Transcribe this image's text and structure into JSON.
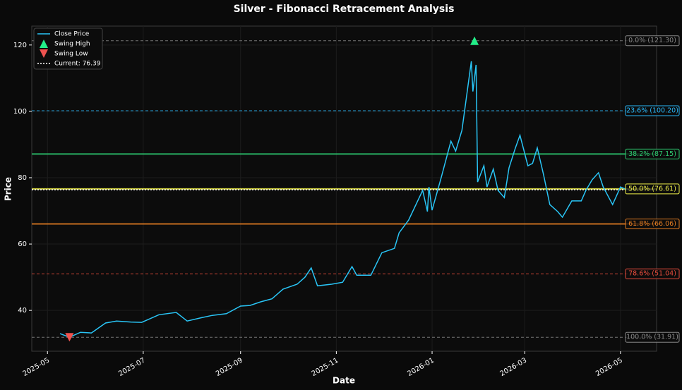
{
  "chart_data": {
    "type": "line",
    "title": "Silver - Fibonacci Retracement Analysis",
    "x_label": "Date",
    "y_label": "Price",
    "xlim": [
      "2025-04-21",
      "2026-05-24"
    ],
    "ylim": [
      27.7,
      125.7
    ],
    "yticks": [
      40,
      60,
      80,
      100,
      120
    ],
    "xticks": [
      {
        "value": "2025-05-01",
        "label": "2025-05"
      },
      {
        "value": "2025-07-01",
        "label": "2025-07"
      },
      {
        "value": "2025-09-01",
        "label": "2025-09"
      },
      {
        "value": "2025-11-01",
        "label": "2025-11"
      },
      {
        "value": "2026-01-01",
        "label": "2026-01"
      },
      {
        "value": "2026-03-01",
        "label": "2026-03"
      },
      {
        "value": "2026-05-01",
        "label": "2026-05"
      }
    ],
    "grid": true,
    "legend": "upper left",
    "series": [
      {
        "name": "Close Price",
        "color": "#29c5f6",
        "x": [
          "2025-05-09",
          "2025-05-15",
          "2025-05-22",
          "2025-05-29",
          "2025-06-07",
          "2025-06-14",
          "2025-06-23",
          "2025-06-30",
          "2025-07-11",
          "2025-07-22",
          "2025-07-29",
          "2025-08-07",
          "2025-08-14",
          "2025-08-23",
          "2025-09-01",
          "2025-09-07",
          "2025-09-14",
          "2025-09-21",
          "2025-09-28",
          "2025-10-07",
          "2025-10-12",
          "2025-10-16",
          "2025-10-20",
          "2025-10-29",
          "2025-11-05",
          "2025-11-11",
          "2025-11-14",
          "2025-11-23",
          "2025-11-30",
          "2025-12-08",
          "2025-12-11",
          "2025-12-17",
          "2025-12-26",
          "2025-12-29",
          "2025-12-30",
          "2026-01-01",
          "2026-01-07",
          "2026-01-13",
          "2026-01-16",
          "2026-01-20",
          "2026-01-26",
          "2026-01-27",
          "2026-01-29",
          "2026-01-30",
          "2026-02-03",
          "2026-02-05",
          "2026-02-09",
          "2026-02-12",
          "2026-02-16",
          "2026-02-19",
          "2026-02-23",
          "2026-02-26",
          "2026-03-03",
          "2026-03-06",
          "2026-03-09",
          "2026-03-13",
          "2026-03-17",
          "2026-03-22",
          "2026-03-25",
          "2026-03-31",
          "2026-04-06",
          "2026-04-09",
          "2026-04-13",
          "2026-04-17",
          "2026-04-20",
          "2026-04-26",
          "2026-05-01",
          "2026-05-05"
        ],
        "values": [
          33.0,
          31.9,
          33.4,
          33.2,
          36.2,
          36.8,
          36.5,
          36.4,
          38.7,
          39.4,
          36.8,
          37.8,
          38.5,
          39.0,
          41.3,
          41.5,
          42.6,
          43.5,
          46.4,
          47.9,
          50.0,
          52.8,
          47.4,
          47.9,
          48.5,
          53.2,
          50.6,
          50.6,
          57.4,
          58.7,
          63.4,
          67.2,
          76.2,
          69.8,
          77.2,
          70.2,
          80.4,
          91.0,
          88.0,
          94.3,
          115.1,
          106.0,
          114.0,
          78.7,
          83.6,
          77.2,
          82.6,
          76.2,
          74.0,
          83.0,
          88.9,
          92.8,
          83.6,
          84.3,
          89.0,
          80.9,
          71.9,
          69.8,
          68.1,
          73.0,
          73.0,
          76.2,
          79.4,
          81.5,
          77.2,
          71.9,
          77.2,
          76.4
        ]
      }
    ],
    "swing_high": {
      "name": "Swing High",
      "color": "#22ee88",
      "x": "2026-01-28",
      "value": 121.3
    },
    "swing_low": {
      "name": "Swing Low",
      "color": "#ef5350",
      "x": "2025-05-15",
      "value": 31.9
    },
    "current": {
      "name": "Current: 76.39",
      "color": "#ffffff",
      "value": 76.39
    },
    "fib_levels": [
      {
        "label": "0.0% (121.30)",
        "value": 121.3,
        "color": "#888888",
        "style": "dashed"
      },
      {
        "label": "23.6% (100.20)",
        "value": 100.2,
        "color": "#29b6f6",
        "style": "dashed"
      },
      {
        "label": "38.2% (87.15)",
        "value": 87.15,
        "color": "#2ecc71",
        "style": "solid"
      },
      {
        "label": "50.0% (76.61)",
        "value": 76.61,
        "color": "#f1f14a",
        "style": "solid"
      },
      {
        "label": "61.8% (66.06)",
        "value": 66.06,
        "color": "#e67e22",
        "style": "solid"
      },
      {
        "label": "78.6% (51.04)",
        "value": 51.04,
        "color": "#e74c3c",
        "style": "dashed"
      },
      {
        "label": "100.0% (31.91)",
        "value": 31.91,
        "color": "#888888",
        "style": "dashed"
      }
    ]
  }
}
